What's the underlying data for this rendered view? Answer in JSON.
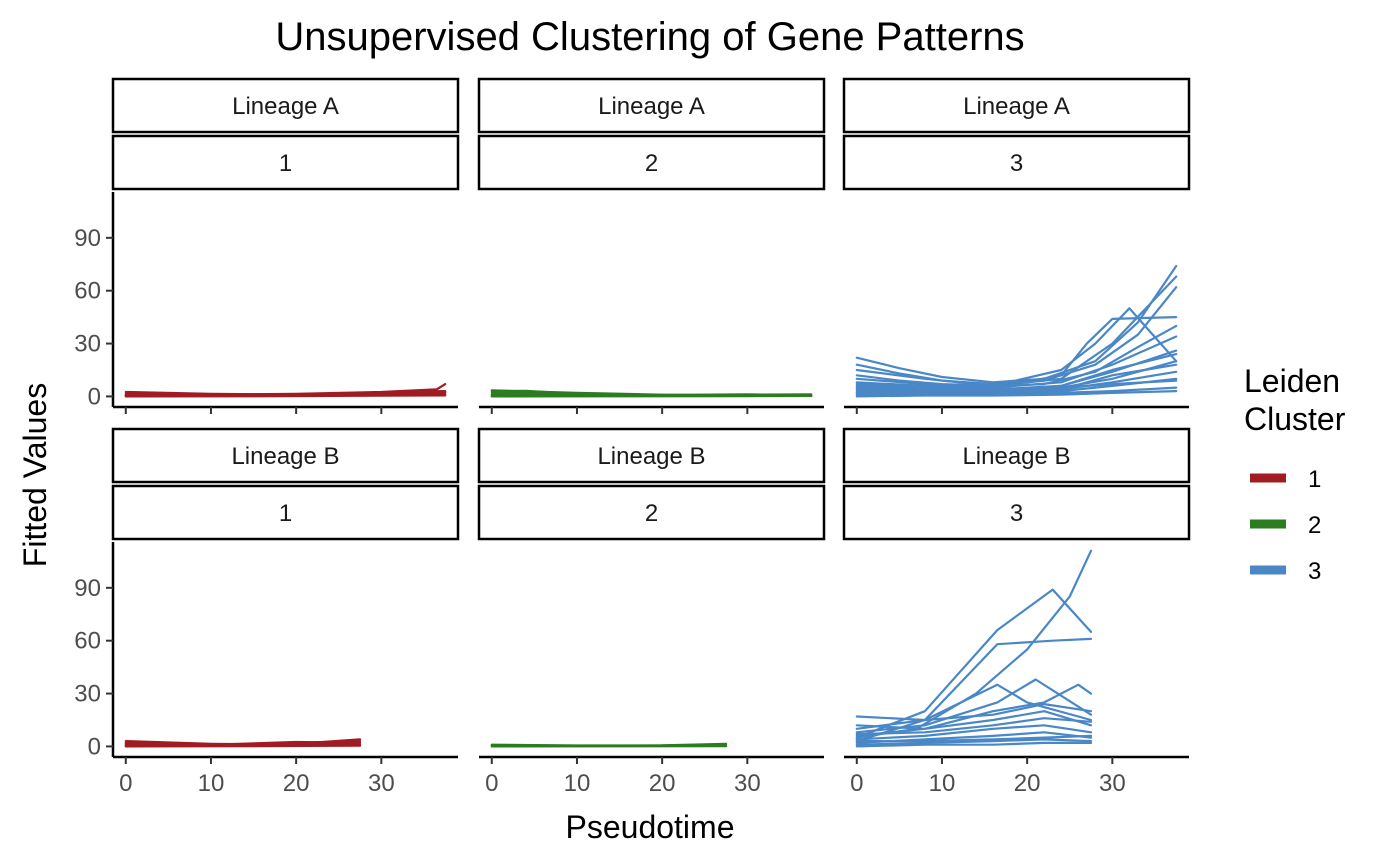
{
  "chart_data": {
    "type": "line",
    "title": "Unsupervised Clustering of Gene Patterns",
    "xlabel": "Pseudotime",
    "ylabel": "Fitted Values",
    "xlim": [
      -1.5,
      39
    ],
    "ylim": [
      -6,
      116
    ],
    "x_ticks": [
      0,
      10,
      20,
      30
    ],
    "y_ticks": [
      0,
      30,
      60,
      90
    ],
    "grid": false,
    "legend": {
      "title": "Leiden Cluster",
      "position": "right",
      "entries": [
        {
          "label": "1",
          "color": "#a01c22"
        },
        {
          "label": "2",
          "color": "#2b7d20"
        },
        {
          "label": "3",
          "color": "#4a87c7"
        }
      ]
    },
    "facet_rows": [
      "Lineage A",
      "Lineage B"
    ],
    "facet_cols": [
      "1",
      "2",
      "3"
    ],
    "panels": [
      {
        "lineage": "Lineage A",
        "cluster": "1",
        "color": "#a01c22",
        "series": [
          {
            "x": [
              0,
              10,
              20,
              30,
              37.5
            ],
            "y": [
              0.5,
              0.3,
              0.6,
              1.5,
              2
            ]
          },
          {
            "x": [
              0,
              10,
              20,
              30,
              36.5,
              37.5
            ],
            "y": [
              1.5,
              1,
              1.5,
              2.5,
              4,
              7
            ]
          },
          {
            "x": [
              0,
              10,
              20,
              30,
              37.5
            ],
            "y": [
              2.5,
              1.5,
              1,
              1.8,
              2.5
            ]
          },
          {
            "x": [
              0,
              10,
              20,
              30,
              37.5
            ],
            "y": [
              0.2,
              0.5,
              1,
              2.2,
              3
            ]
          },
          {
            "x": [
              0,
              10,
              20,
              30,
              37.5
            ],
            "y": [
              1,
              0.4,
              0.3,
              0.8,
              1.2
            ]
          },
          {
            "x": [
              0,
              15,
              30,
              37.5
            ],
            "y": [
              0,
              0.1,
              0.4,
              0.6
            ]
          }
        ]
      },
      {
        "lineage": "Lineage A",
        "cluster": "2",
        "color": "#2b7d20",
        "series": [
          {
            "x": [
              0,
              4,
              10,
              20,
              30,
              37.5
            ],
            "y": [
              3,
              3.2,
              1.5,
              0.8,
              0.5,
              0.4
            ]
          },
          {
            "x": [
              0,
              4,
              10,
              20,
              30,
              37.5
            ],
            "y": [
              2,
              2.5,
              1.2,
              0.6,
              1,
              1.2
            ]
          },
          {
            "x": [
              0,
              5,
              10,
              20,
              30,
              37.5
            ],
            "y": [
              1,
              1.5,
              0.8,
              0.5,
              0.3,
              0.3
            ]
          },
          {
            "x": [
              0,
              10,
              20,
              30,
              37.5
            ],
            "y": [
              0.3,
              0.5,
              0.8,
              1.2,
              0.5
            ]
          },
          {
            "x": [
              0,
              10,
              20,
              30,
              37.5
            ],
            "y": [
              3.5,
              2,
              1,
              0.6,
              0.8
            ]
          },
          {
            "x": [
              0,
              15,
              30,
              37.5
            ],
            "y": [
              0,
              0.1,
              0.2,
              0.3
            ]
          }
        ]
      },
      {
        "lineage": "Lineage A",
        "cluster": "3",
        "color": "#4a87c7",
        "series": [
          {
            "x": [
              0,
              5,
              10,
              16,
              22,
              28,
              33,
              37.5
            ],
            "y": [
              22,
              16,
              11,
              8,
              10,
              20,
              42,
              74
            ]
          },
          {
            "x": [
              0,
              5,
              10,
              16,
              22,
              28,
              33,
              37.5
            ],
            "y": [
              18,
              13,
              9,
              7,
              9,
              18,
              35,
              62
            ]
          },
          {
            "x": [
              0,
              5,
              10,
              16,
              22,
              28,
              33,
              37.5
            ],
            "y": [
              12,
              9,
              7,
              6,
              7,
              14,
              28,
              40
            ]
          },
          {
            "x": [
              0,
              8,
              16,
              24,
              28,
              32,
              37.5
            ],
            "y": [
              5,
              4,
              6,
              15,
              30,
              50,
              20
            ]
          },
          {
            "x": [
              0,
              8,
              16,
              24,
              27,
              30,
              37.5
            ],
            "y": [
              8,
              6,
              5,
              12,
              30,
              44,
              45
            ]
          },
          {
            "x": [
              0,
              8,
              16,
              24,
              30,
              37.5
            ],
            "y": [
              15,
              10,
              6,
              10,
              30,
              68
            ]
          },
          {
            "x": [
              0,
              8,
              16,
              24,
              30,
              37.5
            ],
            "y": [
              10,
              7,
              5,
              8,
              18,
              34
            ]
          },
          {
            "x": [
              0,
              8,
              16,
              24,
              30,
              37.5
            ],
            "y": [
              6,
              5,
              4,
              6,
              14,
              26
            ]
          },
          {
            "x": [
              0,
              8,
              16,
              24,
              30,
              37.5
            ],
            "y": [
              4,
              3,
              3,
              5,
              10,
              20
            ]
          },
          {
            "x": [
              0,
              8,
              16,
              24,
              30,
              37.5
            ],
            "y": [
              3,
              3,
              3,
              4,
              8,
              14
            ]
          },
          {
            "x": [
              0,
              8,
              16,
              24,
              30,
              37.5
            ],
            "y": [
              2,
              2,
              2,
              3,
              6,
              10
            ]
          },
          {
            "x": [
              0,
              8,
              16,
              24,
              30,
              37.5
            ],
            "y": [
              7,
              5,
              4,
              5,
              7,
              9
            ]
          },
          {
            "x": [
              0,
              8,
              16,
              24,
              30,
              37.5
            ],
            "y": [
              1,
              1,
              1,
              2,
              3,
              5
            ]
          },
          {
            "x": [
              0,
              8,
              16,
              24,
              30,
              37.5
            ],
            "y": [
              0,
              0.5,
              0.5,
              1,
              2,
              3
            ]
          },
          {
            "x": [
              0,
              8,
              16,
              24,
              30,
              37.5
            ],
            "y": [
              5,
              4,
              3,
              4,
              12,
              18
            ]
          },
          {
            "x": [
              0,
              8,
              16,
              24,
              30,
              37.5
            ],
            "y": [
              2,
              2,
              3,
              6,
              15,
              24
            ]
          }
        ]
      },
      {
        "lineage": "Lineage B",
        "cluster": "1",
        "color": "#a01c22",
        "series": [
          {
            "x": [
              0,
              10,
              20,
              27.5
            ],
            "y": [
              2,
              1,
              1.5,
              4
            ]
          },
          {
            "x": [
              0,
              10,
              20,
              27.5
            ],
            "y": [
              1,
              0.8,
              2,
              3
            ]
          },
          {
            "x": [
              0,
              10,
              20,
              27.5
            ],
            "y": [
              3,
              1.5,
              1,
              2
            ]
          },
          {
            "x": [
              0,
              10,
              20,
              27.5
            ],
            "y": [
              0.5,
              1,
              2.5,
              2
            ]
          },
          {
            "x": [
              0,
              10,
              20,
              27.5
            ],
            "y": [
              1.5,
              0.6,
              0.5,
              1
            ]
          },
          {
            "x": [
              0,
              15,
              27.5
            ],
            "y": [
              0,
              0.2,
              0.4
            ]
          }
        ]
      },
      {
        "lineage": "Lineage B",
        "cluster": "2",
        "color": "#2b7d20",
        "series": [
          {
            "x": [
              0,
              10,
              20,
              27.5
            ],
            "y": [
              1,
              0.5,
              0.6,
              1.5
            ]
          },
          {
            "x": [
              0,
              10,
              20,
              27.5
            ],
            "y": [
              0.5,
              0.3,
              0.5,
              1
            ]
          },
          {
            "x": [
              0,
              10,
              20,
              27.5
            ],
            "y": [
              0.2,
              0.4,
              0.3,
              0.5
            ]
          },
          {
            "x": [
              0,
              15,
              27.5
            ],
            "y": [
              0,
              0.1,
              0.2
            ]
          }
        ]
      },
      {
        "lineage": "Lineage B",
        "cluster": "3",
        "color": "#4a87c7",
        "series": [
          {
            "x": [
              0,
              7,
              14,
              20,
              25,
              27.5
            ],
            "y": [
              5,
              10,
              30,
              55,
              85,
              111
            ]
          },
          {
            "x": [
              0,
              8,
              16.5,
              23,
              27.5
            ],
            "y": [
              5,
              20,
              66,
              89,
              65
            ]
          },
          {
            "x": [
              0,
              8,
              16.5,
              23,
              27.5
            ],
            "y": [
              3,
              15,
              58,
              60,
              61
            ]
          },
          {
            "x": [
              0,
              8,
              16.5,
              20,
              27.5
            ],
            "y": [
              10,
              15,
              35,
              25,
              15
            ]
          },
          {
            "x": [
              0,
              8,
              16.5,
              21,
              27.5
            ],
            "y": [
              8,
              12,
              25,
              38,
              18
            ]
          },
          {
            "x": [
              0,
              8,
              16,
              22,
              26,
              27.5
            ],
            "y": [
              6,
              10,
              20,
              25,
              35,
              30
            ]
          },
          {
            "x": [
              0,
              8,
              16,
              22,
              27.5
            ],
            "y": [
              17,
              15,
              18,
              24,
              20
            ]
          },
          {
            "x": [
              0,
              8,
              16,
              22,
              27.5
            ],
            "y": [
              12,
              10,
              15,
              20,
              12
            ]
          },
          {
            "x": [
              0,
              8,
              16,
              22,
              27.5
            ],
            "y": [
              4,
              6,
              10,
              12,
              8
            ]
          },
          {
            "x": [
              0,
              8,
              16,
              22,
              27.5
            ],
            "y": [
              2,
              4,
              6,
              8,
              5
            ]
          },
          {
            "x": [
              0,
              8,
              16,
              22,
              27.5
            ],
            "y": [
              1,
              2,
              3,
              4,
              3
            ]
          },
          {
            "x": [
              0,
              8,
              16,
              22,
              27.5
            ],
            "y": [
              0,
              1,
              1,
              2,
              2
            ]
          },
          {
            "x": [
              0,
              8,
              16,
              22,
              27.5
            ],
            "y": [
              7,
              8,
              12,
              16,
              14
            ]
          },
          {
            "x": [
              0,
              8,
              16,
              22,
              27.5
            ],
            "y": [
              3,
              3,
              4,
              5,
              6
            ]
          }
        ]
      }
    ]
  }
}
